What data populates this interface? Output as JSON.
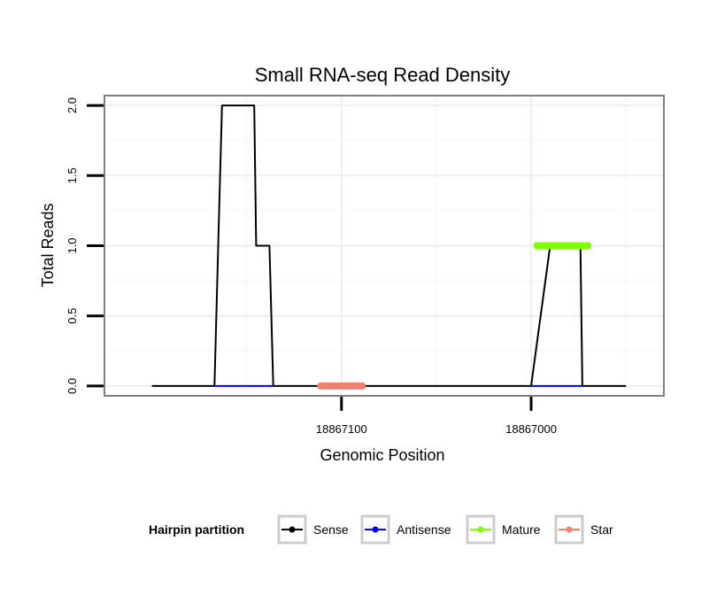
{
  "chart_data": {
    "type": "line",
    "title": "Small RNA-seq Read Density",
    "xlabel": "Genomic Position",
    "ylabel": "Total Reads",
    "x_reversed": true,
    "xlim": [
      18867225,
      18866930
    ],
    "ylim": [
      -0.07,
      2.07
    ],
    "x_ticks": [
      18867100,
      18867000
    ],
    "x_tick_labels": [
      "18867100",
      "18867000"
    ],
    "y_ticks": [
      0.0,
      0.5,
      1.0,
      1.5,
      2.0
    ],
    "y_tick_labels": [
      "0.0",
      "0.5",
      "1.0",
      "1.5",
      "2.0"
    ],
    "series": [
      {
        "name": "Sense",
        "color": "#000000",
        "x": [
          18867200,
          18867167,
          18867165,
          18867163,
          18867146,
          18867145,
          18867138,
          18867136,
          18867000,
          18866990,
          18866974,
          18866973,
          18866950
        ],
        "y": [
          0,
          0,
          1,
          2,
          2,
          1,
          1,
          0,
          0,
          1,
          1,
          0,
          0
        ]
      },
      {
        "name": "Antisense",
        "color": "#0000ff",
        "segments": [
          [
            18867167,
            18867136
          ],
          [
            18867000,
            18866973
          ]
        ],
        "value": 0
      },
      {
        "name": "Mature",
        "color": "#7fff00",
        "segments": [
          [
            18866997,
            18866970
          ]
        ],
        "value": 1
      },
      {
        "name": "Star",
        "color": "#f08070",
        "segments": [
          [
            18867111,
            18867089
          ]
        ],
        "value": 0
      }
    ],
    "legend": {
      "title": "Hairpin partition",
      "position": "bottom",
      "entries": [
        {
          "label": "Sense",
          "color": "#000000"
        },
        {
          "label": "Antisense",
          "color": "#0000ff"
        },
        {
          "label": "Mature",
          "color": "#7fff00"
        },
        {
          "label": "Star",
          "color": "#f08070"
        }
      ]
    }
  }
}
